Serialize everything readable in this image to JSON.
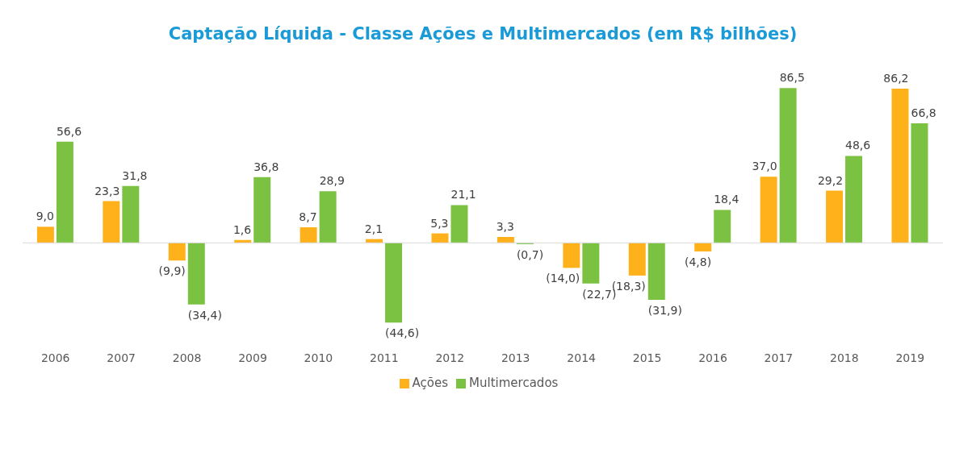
{
  "chart_data": {
    "type": "bar",
    "title": "Captação Líquida - Classe Ações e Multimercados (em R$ bilhões)",
    "categories": [
      "2006",
      "2007",
      "2008",
      "2009",
      "2010",
      "2011",
      "2012",
      "2013",
      "2014",
      "2015",
      "2016",
      "2017",
      "2018",
      "2019"
    ],
    "series": [
      {
        "name": "Ações",
        "color": "#ffb11b",
        "values": [
          9.0,
          23.3,
          -9.9,
          1.6,
          8.7,
          2.1,
          5.3,
          3.3,
          -14.0,
          -18.3,
          -4.8,
          37.0,
          29.2,
          86.2
        ],
        "value_labels": [
          "9,0",
          "23,3",
          "(9,9)",
          "1,6",
          "8,7",
          "2,1",
          "5,3",
          "3,3",
          "(14,0)",
          "(18,3)",
          "(4,8)",
          "37,0",
          "29,2",
          "86,2"
        ]
      },
      {
        "name": "Multimercados",
        "color": "#7cc242",
        "values": [
          56.6,
          31.8,
          -34.4,
          36.8,
          28.9,
          -44.6,
          21.1,
          -0.7,
          -22.7,
          -31.9,
          18.4,
          86.5,
          48.6,
          66.8
        ],
        "value_labels": [
          "56,6",
          "31,8",
          "(34,4)",
          "36,8",
          "28,9",
          "(44,6)",
          "21,1",
          "(0,7)",
          "(22,7)",
          "(31,9)",
          "18,4",
          "86,5",
          "48,6",
          "66,8"
        ]
      }
    ],
    "legend": "bottom",
    "grid": false
  }
}
